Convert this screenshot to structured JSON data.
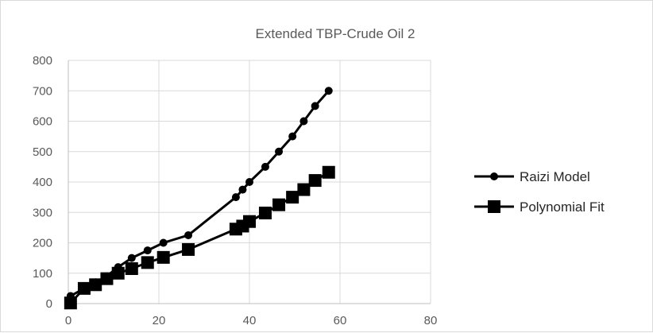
{
  "chart_data": {
    "type": "line",
    "title": "Extended TBP-Crude Oil 2",
    "xlabel": "",
    "ylabel": "",
    "xlim": [
      0,
      80
    ],
    "ylim": [
      0,
      800
    ],
    "xticks": [
      0,
      20,
      40,
      60,
      80
    ],
    "yticks": [
      0,
      100,
      200,
      300,
      400,
      500,
      600,
      700,
      800
    ],
    "grid": true,
    "legend_position": "right",
    "series": [
      {
        "name": "Raizi Model",
        "marker": "circle",
        "color": "#000000",
        "x": [
          0.5,
          3.5,
          6,
          8.5,
          11,
          14,
          17.5,
          21,
          26.5,
          37,
          38.5,
          40,
          43.5,
          46.5,
          49.5,
          52,
          54.5,
          57.5
        ],
        "y": [
          25,
          50,
          70,
          90,
          120,
          150,
          175,
          200,
          225,
          350,
          375,
          400,
          450,
          500,
          550,
          600,
          650,
          700
        ]
      },
      {
        "name": "Polynomial Fit",
        "marker": "square",
        "color": "#000000",
        "x": [
          0.5,
          3.5,
          6,
          8.5,
          11,
          14,
          17.5,
          21,
          26.5,
          37,
          38.5,
          40,
          43.5,
          46.5,
          49.5,
          52,
          54.5,
          57.5
        ],
        "y": [
          2,
          50,
          62,
          82,
          100,
          115,
          135,
          152,
          178,
          245,
          255,
          270,
          298,
          325,
          350,
          375,
          405,
          432
        ]
      }
    ]
  }
}
